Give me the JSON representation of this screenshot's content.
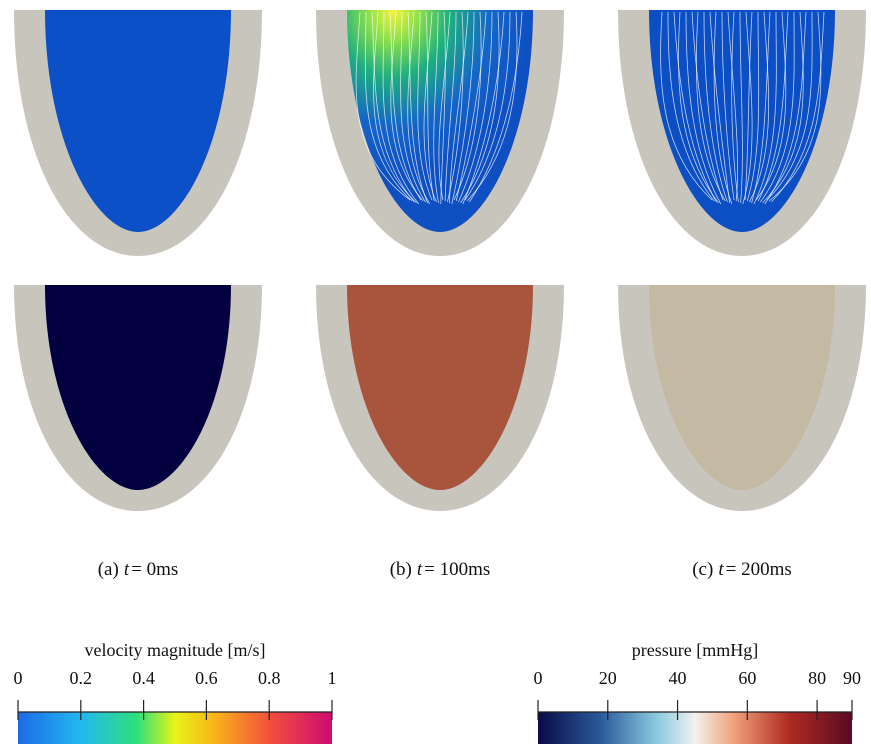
{
  "panels": [
    {
      "caption": {
        "label": "(a)",
        "symbol": "t",
        "value": "= 0ms"
      }
    },
    {
      "caption": {
        "label": "(b)",
        "symbol": "t",
        "value": "= 100ms"
      }
    },
    {
      "caption": {
        "label": "(c)",
        "symbol": "t",
        "value": "= 200ms"
      }
    }
  ],
  "colorbars": [
    {
      "title": "velocity magnitude [m/s]",
      "lim": [
        0,
        1
      ],
      "ticks": [
        0,
        0.2,
        0.4,
        0.6,
        0.8,
        1
      ]
    },
    {
      "title": "pressure [mmHg]",
      "lim": [
        0,
        90
      ],
      "ticks": [
        0,
        20,
        40,
        60,
        80,
        90
      ]
    }
  ]
}
